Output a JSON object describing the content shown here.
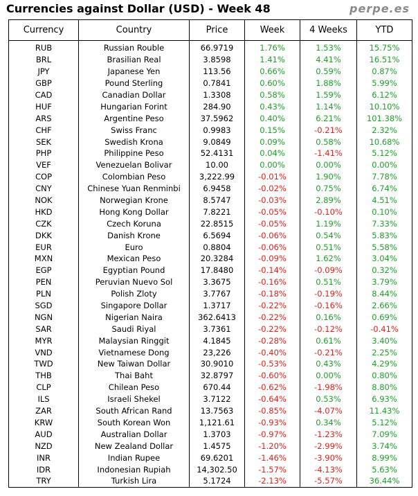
{
  "header": {
    "title": "Currencies against Dollar (USD) - Week 48",
    "brand": "perpe.es"
  },
  "columns": [
    "Currency",
    "Country",
    "Price",
    "Week",
    "4 Weeks",
    "YTD"
  ],
  "colors": {
    "positive": "#1f9e2a",
    "negative": "#e0211a"
  },
  "rows": [
    {
      "code": "RUB",
      "country": "Russian Rouble",
      "price": "66.9719",
      "week": "1.76%",
      "four_weeks": "1.53%",
      "ytd": "15.75%"
    },
    {
      "code": "BRL",
      "country": "Brasilian Real",
      "price": "3.8598",
      "week": "1.41%",
      "four_weeks": "4.41%",
      "ytd": "16.51%"
    },
    {
      "code": "JPY",
      "country": "Japanese Yen",
      "price": "113.56",
      "week": "0.66%",
      "four_weeks": "0.59%",
      "ytd": "0.87%"
    },
    {
      "code": "GBP",
      "country": "Pound Sterling",
      "price": "0.7841",
      "week": "0.60%",
      "four_weeks": "1.88%",
      "ytd": "5.99%"
    },
    {
      "code": "CAD",
      "country": "Canadian Dollar",
      "price": "1.3308",
      "week": "0.58%",
      "four_weeks": "1.59%",
      "ytd": "6.12%"
    },
    {
      "code": "HUF",
      "country": "Hungarian Forint",
      "price": "284.90",
      "week": "0.43%",
      "four_weeks": "1.14%",
      "ytd": "10.10%"
    },
    {
      "code": "ARS",
      "country": "Argentine Peso",
      "price": "37.5962",
      "week": "0.40%",
      "four_weeks": "6.21%",
      "ytd": "101.38%"
    },
    {
      "code": "CHF",
      "country": "Swiss Franc",
      "price": "0.9983",
      "week": "0.15%",
      "four_weeks": "-0.21%",
      "ytd": "2.32%"
    },
    {
      "code": "SEK",
      "country": "Swedish Krona",
      "price": "9.0849",
      "week": "0.09%",
      "four_weeks": "0.58%",
      "ytd": "10.68%"
    },
    {
      "code": "PHP",
      "country": "Philippine Peso",
      "price": "52.4131",
      "week": "0.04%",
      "four_weeks": "-1.41%",
      "ytd": "5.12%"
    },
    {
      "code": "VEF",
      "country": "Venezuelan Bolivar",
      "price": "10.00",
      "week": "0.00%",
      "four_weeks": "0.00%",
      "ytd": "0.00%"
    },
    {
      "code": "COP",
      "country": "Colombian Peso",
      "price": "3,222.99",
      "week": "-0.01%",
      "four_weeks": "1.90%",
      "ytd": "7.78%"
    },
    {
      "code": "CNY",
      "country": "Chinese Yuan Renminbi",
      "price": "6.9458",
      "week": "-0.02%",
      "four_weeks": "0.75%",
      "ytd": "6.74%"
    },
    {
      "code": "NOK",
      "country": "Norwegian Krone",
      "price": "8.5747",
      "week": "-0.03%",
      "four_weeks": "2.89%",
      "ytd": "4.51%"
    },
    {
      "code": "HKD",
      "country": "Hong Kong Dollar",
      "price": "7.8221",
      "week": "-0.05%",
      "four_weeks": "-0.10%",
      "ytd": "0.10%"
    },
    {
      "code": "CZK",
      "country": "Czech Koruna",
      "price": "22.8515",
      "week": "-0.05%",
      "four_weeks": "1.19%",
      "ytd": "7.33%"
    },
    {
      "code": "DKK",
      "country": "Danish Krone",
      "price": "6.5694",
      "week": "-0.06%",
      "four_weeks": "0.54%",
      "ytd": "5.83%"
    },
    {
      "code": "EUR",
      "country": "Euro",
      "price": "0.8804",
      "week": "-0.06%",
      "four_weeks": "0.51%",
      "ytd": "5.58%"
    },
    {
      "code": "MXN",
      "country": "Mexican Peso",
      "price": "20.3284",
      "week": "-0.09%",
      "four_weeks": "1.62%",
      "ytd": "3.04%"
    },
    {
      "code": "EGP",
      "country": "Egyptian Pound",
      "price": "17.8480",
      "week": "-0.14%",
      "four_weeks": "-0.09%",
      "ytd": "0.32%"
    },
    {
      "code": "PEN",
      "country": "Peruvian Nuevo Sol",
      "price": "3.3675",
      "week": "-0.16%",
      "four_weeks": "0.51%",
      "ytd": "3.79%"
    },
    {
      "code": "PLN",
      "country": "Polish Zloty",
      "price": "3.7767",
      "week": "-0.18%",
      "four_weeks": "-0.19%",
      "ytd": "8.44%"
    },
    {
      "code": "SGD",
      "country": "Singapore Dollar",
      "price": "1.3717",
      "week": "-0.22%",
      "four_weeks": "-0.16%",
      "ytd": "2.66%"
    },
    {
      "code": "NGN",
      "country": "Nigerian Naira",
      "price": "362.6413",
      "week": "-0.22%",
      "four_weeks": "0.16%",
      "ytd": "0.69%"
    },
    {
      "code": "SAR",
      "country": "Saudi Riyal",
      "price": "3.7361",
      "week": "-0.22%",
      "four_weeks": "-0.12%",
      "ytd": "-0.41%"
    },
    {
      "code": "MYR",
      "country": "Malaysian Ringgit",
      "price": "4.1845",
      "week": "-0.28%",
      "four_weeks": "0.61%",
      "ytd": "3.40%"
    },
    {
      "code": "VND",
      "country": "Vietnamese Dong",
      "price": "23,226",
      "week": "-0.40%",
      "four_weeks": "-0.21%",
      "ytd": "2.25%"
    },
    {
      "code": "TWD",
      "country": "New Taiwan Dollar",
      "price": "30.9010",
      "week": "-0.53%",
      "four_weeks": "0.43%",
      "ytd": "4.29%"
    },
    {
      "code": "THB",
      "country": "Thai Baht",
      "price": "32.8797",
      "week": "-0.60%",
      "four_weeks": "0.00%",
      "ytd": "0.80%"
    },
    {
      "code": "CLP",
      "country": "Chilean Peso",
      "price": "670.44",
      "week": "-0.62%",
      "four_weeks": "-1.98%",
      "ytd": "8.80%"
    },
    {
      "code": "ILS",
      "country": "Israeli Shekel",
      "price": "3.7122",
      "week": "-0.64%",
      "four_weeks": "0.53%",
      "ytd": "6.93%"
    },
    {
      "code": "ZAR",
      "country": "South African Rand",
      "price": "13.7563",
      "week": "-0.85%",
      "four_weeks": "-4.07%",
      "ytd": "11.43%"
    },
    {
      "code": "KRW",
      "country": "South Korean Won",
      "price": "1,121.61",
      "week": "-0.93%",
      "four_weeks": "0.34%",
      "ytd": "5.12%"
    },
    {
      "code": "AUD",
      "country": "Australian Dollar",
      "price": "1.3703",
      "week": "-0.97%",
      "four_weeks": "-1.23%",
      "ytd": "7.09%"
    },
    {
      "code": "NZD",
      "country": "New Zealand Dollar",
      "price": "1.4575",
      "week": "-1.20%",
      "four_weeks": "-2.99%",
      "ytd": "3.74%"
    },
    {
      "code": "INR",
      "country": "Indian Rupee",
      "price": "69.6201",
      "week": "-1.46%",
      "four_weeks": "-3.90%",
      "ytd": "8.99%"
    },
    {
      "code": "IDR",
      "country": "Indonesian Rupiah",
      "price": "14,302.50",
      "week": "-1.57%",
      "four_weeks": "-4.13%",
      "ytd": "5.63%"
    },
    {
      "code": "TRY",
      "country": "Turkish Lira",
      "price": "5.1724",
      "week": "-2.13%",
      "four_weeks": "-5.57%",
      "ytd": "36.44%"
    }
  ]
}
